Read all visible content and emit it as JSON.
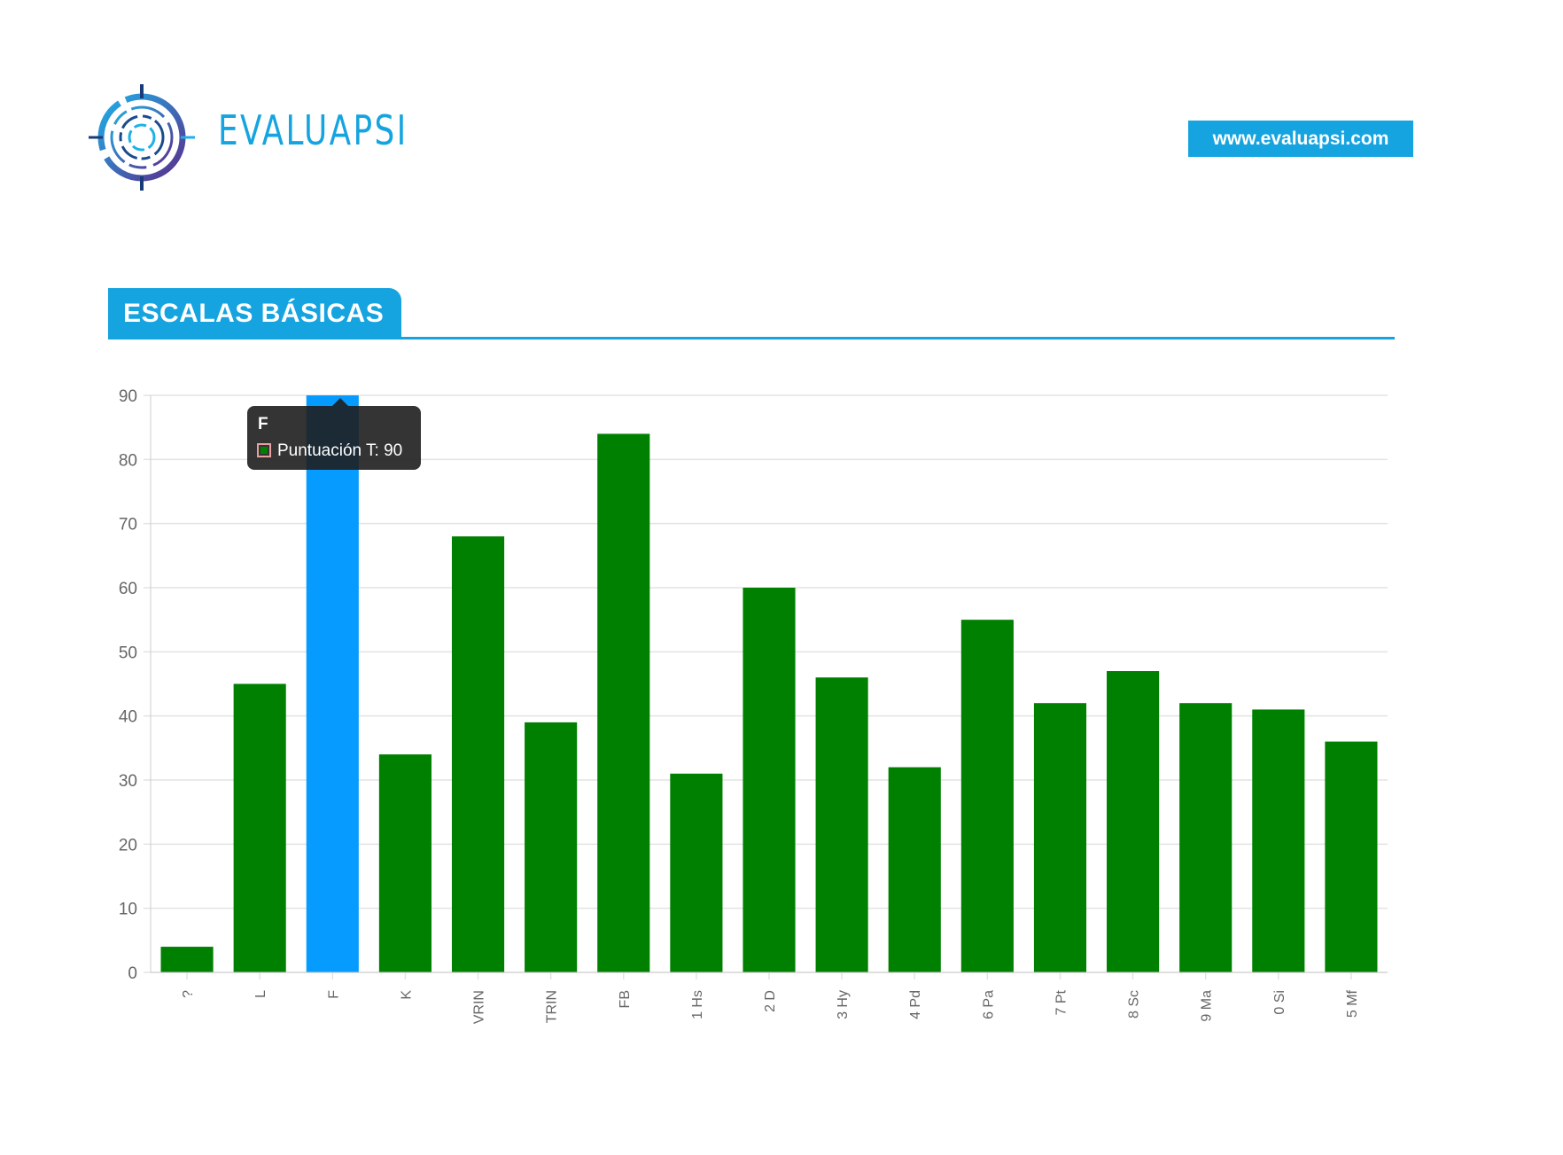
{
  "header": {
    "brand": "EVALUAPSI",
    "url": "www.evaluapsi.com"
  },
  "section": {
    "title": "ESCALAS BÁSICAS"
  },
  "colors": {
    "accent": "#16a4e0",
    "bar": "#008000",
    "bar_highlight": "#069bff",
    "grid": "#e3e3e3",
    "tick_text": "#666666"
  },
  "tooltip": {
    "title": "F",
    "text": "Puntuación T: 90"
  },
  "chart_data": {
    "type": "bar",
    "categories": [
      "?",
      "L",
      "F",
      "K",
      "VRIN",
      "TRIN",
      "FB",
      "1 Hs",
      "2 D",
      "3 Hy",
      "4 Pd",
      "6 Pa",
      "7 Pt",
      "8 Sc",
      "9 Ma",
      "0 Si",
      "5 Mf"
    ],
    "series": [
      {
        "name": "Puntuación T",
        "values": [
          4,
          45,
          90,
          34,
          68,
          39,
          84,
          31,
          60,
          46,
          32,
          55,
          42,
          47,
          42,
          41,
          36
        ]
      }
    ],
    "highlighted_category": "F",
    "ylim": [
      0,
      90
    ],
    "yticks": [
      0,
      10,
      20,
      30,
      40,
      50,
      60,
      70,
      80,
      90
    ],
    "grid": true,
    "legend": "none",
    "xlabel": "",
    "ylabel": ""
  }
}
